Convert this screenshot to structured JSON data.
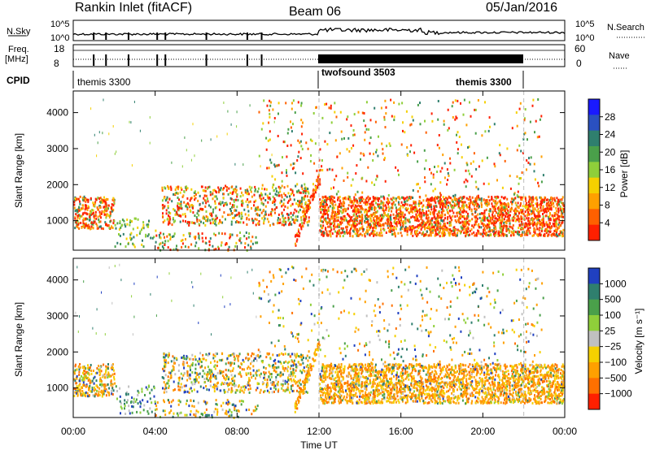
{
  "header": {
    "radar": "Rankin Inlet (fitACF)",
    "beam": "Beam 06",
    "date": "05/Jan/2016"
  },
  "top_panels": {
    "nsky_label": "N.Sky",
    "nsky_ticks": [
      "10^5",
      "10^0"
    ],
    "nsky_right_ticks": [
      "10^5",
      "10^0"
    ],
    "nsearch_label": "N.Search",
    "freq_label": "Freq.",
    "freq_unit": "[MHz]",
    "freq_ticks": [
      "18",
      "8"
    ],
    "nave_label": "Nave",
    "nave_ticks": [
      "60",
      "0"
    ],
    "cpid_label": "CPID",
    "cpid_modes": [
      {
        "name": "themis 3300",
        "start_hour": 0,
        "end_hour": 12
      },
      {
        "name": "twofsound 3503",
        "start_hour": 12,
        "end_hour": 22
      },
      {
        "name": "themis 3300",
        "start_hour": 22,
        "end_hour": 24
      }
    ]
  },
  "chart_data": [
    {
      "type": "heatmap",
      "name": "power",
      "ylabel": "Slant Range [km]",
      "yticks": [
        1000,
        2000,
        3000,
        4000
      ],
      "ylim": [
        180,
        4600
      ],
      "xlim": [
        0,
        24
      ],
      "colorbar": {
        "label": "Power [dB]",
        "ticks": [
          "4",
          "8",
          "12",
          "16",
          "20",
          "24",
          "28"
        ],
        "colors": [
          "#1a1aff",
          "#2a50c0",
          "#2f7f6e",
          "#4aa04a",
          "#8fcf3a",
          "#f5d000",
          "#ffa000",
          "#ff6000",
          "#ff2000"
        ]
      },
      "dominant_band_km": [
        600,
        1800
      ],
      "vertical_markers_hour": [
        12,
        22
      ]
    },
    {
      "type": "heatmap",
      "name": "velocity",
      "ylabel": "Slant Range [km]",
      "yticks": [
        1000,
        2000,
        3000,
        4000
      ],
      "ylim": [
        180,
        4600
      ],
      "xlim": [
        0,
        24
      ],
      "colorbar": {
        "label": "Velocity [m s⁻¹]",
        "ticks": [
          "1000",
          "500",
          "100",
          "25",
          "−25",
          "−100",
          "−500",
          "−1000"
        ],
        "colors": [
          "#2040c0",
          "#2f7f6e",
          "#4aa04a",
          "#8fcf3a",
          "#c0c0c0",
          "#f5d000",
          "#ffa000",
          "#ff7000",
          "#ff2000"
        ]
      },
      "dominant_band_km": [
        600,
        1800
      ],
      "vertical_markers_hour": [
        12,
        22
      ]
    }
  ],
  "xaxis": {
    "ticks": [
      "00:00",
      "04:00",
      "08:00",
      "12:00",
      "16:00",
      "20:00",
      "00:00"
    ],
    "label": "Time UT"
  }
}
